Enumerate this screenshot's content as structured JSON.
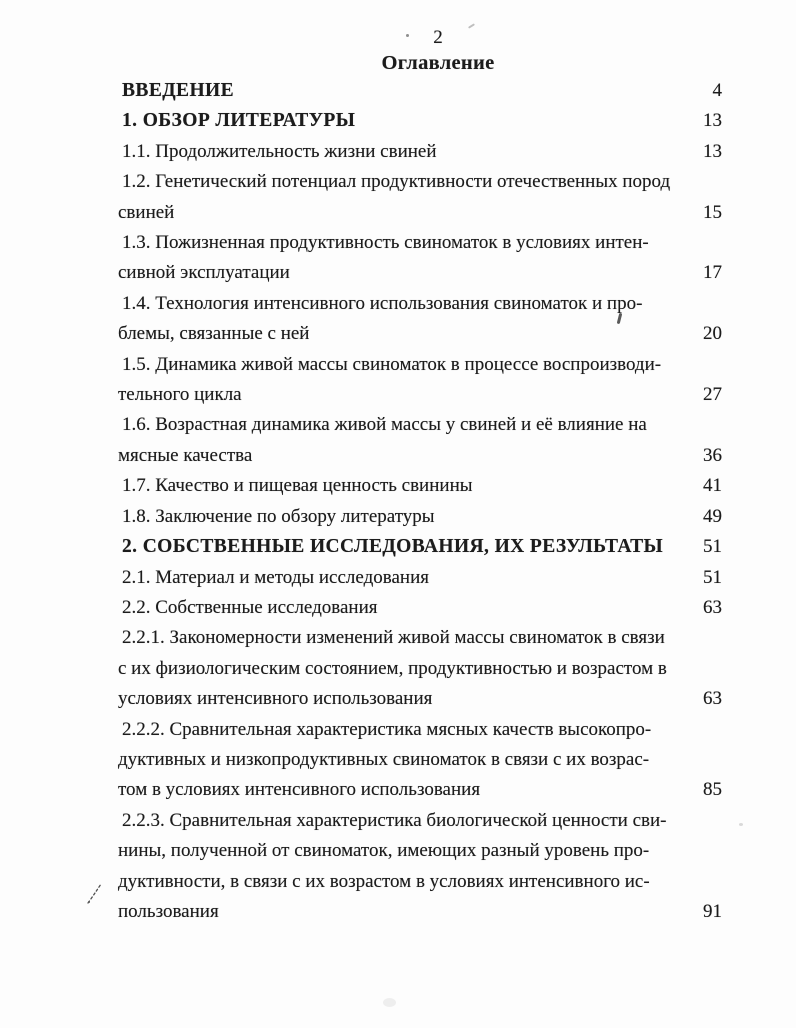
{
  "page": {
    "number": "2",
    "title": "Оглавление"
  },
  "toc": {
    "entries": [
      {
        "text": "ВВЕДЕНИЕ",
        "page": "4",
        "bold": true
      },
      {
        "text": "1. ОБЗОР ЛИТЕРАТУРЫ",
        "page": "13",
        "bold": true
      },
      {
        "text": "1.1. Продолжительность жизни свиней",
        "page": "13",
        "bold": false
      },
      {
        "text": "1.2. Генетический потенциал продуктивности отечественных пород\nсвиней",
        "page": "15",
        "bold": false
      },
      {
        "text": "1.3. Пожизненная продуктивность свиноматок в условиях интен-\nсивной эксплуатации",
        "page": "17",
        "bold": false
      },
      {
        "text": "1.4. Технология интенсивного использования свиноматок и про-\nблемы, связанные с ней",
        "page": "20",
        "bold": false
      },
      {
        "text": "1.5. Динамика живой массы свиноматок в процессе воспроизводи-\nтельного цикла",
        "page": "27",
        "bold": false
      },
      {
        "text": "1.6. Возрастная динамика живой массы у свиней и её влияние на\nмясные качества",
        "page": "36",
        "bold": false
      },
      {
        "text": "1.7. Качество и пищевая ценность свинины",
        "page": "41",
        "bold": false
      },
      {
        "text": "1.8. Заключение по обзору литературы",
        "page": "49",
        "bold": false
      },
      {
        "text": "2. СОБСТВЕННЫЕ ИССЛЕДОВАНИЯ, ИХ РЕЗУЛЬТАТЫ",
        "page": "51",
        "bold": true
      },
      {
        "text": "2.1. Материал и методы исследования",
        "page": "51",
        "bold": false
      },
      {
        "text": "2.2. Собственные исследования",
        "page": "63",
        "bold": false
      },
      {
        "text": "2.2.1. Закономерности изменений живой массы свиноматок в связи\nс их физиологическим состоянием, продуктивностью и возрастом в\nусловиях интенсивного использования",
        "page": "63",
        "bold": false
      },
      {
        "text": "2.2.2. Сравнительная характеристика мясных качеств высокопро-\nдуктивных и низкопродуктивных свиноматок в связи с их возрас-\nтом в условиях интенсивного использования",
        "page": "85",
        "bold": false
      },
      {
        "text": "2.2.3. Сравнительная характеристика биологической ценности сви-\nнины, полученной от свиноматок, имеющих разный уровень про-\nдуктивности, в связи с их возрастом в условиях интенсивного ис-\nпользования",
        "page": "91",
        "bold": false
      }
    ]
  },
  "colors": {
    "ink": "#1c1c1c",
    "paper": "#fdfdfd"
  }
}
